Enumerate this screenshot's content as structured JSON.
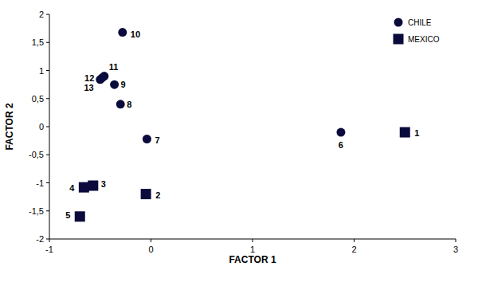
{
  "chart_data": {
    "type": "scatter",
    "x_label": "FACTOR 1",
    "y_label": "FACTOR 2",
    "xlim": [
      -1,
      3
    ],
    "xticks": [
      -1,
      0,
      1,
      2,
      3
    ],
    "ylim": [
      -2,
      2
    ],
    "yticks": [
      -2,
      {
        "value": -1.5,
        "label": "-1,5"
      },
      -1,
      {
        "value": -0.5,
        "label": "-0,5"
      },
      0,
      {
        "value": 0.5,
        "label": "0,5"
      },
      1,
      {
        "value": 1.5,
        "label": "1,5"
      },
      2
    ],
    "grid": false,
    "legend": "top-right",
    "series": [
      {
        "name": "CHILE",
        "color": "#0a0a3c",
        "marker": "circle",
        "labels": [
          "6",
          "7",
          "8",
          "9",
          "10",
          "11",
          "12",
          "13"
        ],
        "x": [
          1.87,
          -0.04,
          -0.3,
          -0.36,
          -0.28,
          -0.46,
          -0.48,
          -0.5
        ],
        "values": [
          -0.1,
          -0.22,
          0.4,
          0.75,
          1.68,
          0.9,
          0.87,
          0.84
        ]
      },
      {
        "name": "MEXICO",
        "color": "#0a0a3c",
        "marker": "square",
        "labels": [
          "1",
          "2",
          "3",
          "4",
          "5"
        ],
        "x": [
          2.5,
          -0.05,
          -0.57,
          -0.66,
          -0.7
        ],
        "values": [
          -0.1,
          -1.2,
          -1.05,
          -1.08,
          -1.6
        ]
      }
    ]
  }
}
